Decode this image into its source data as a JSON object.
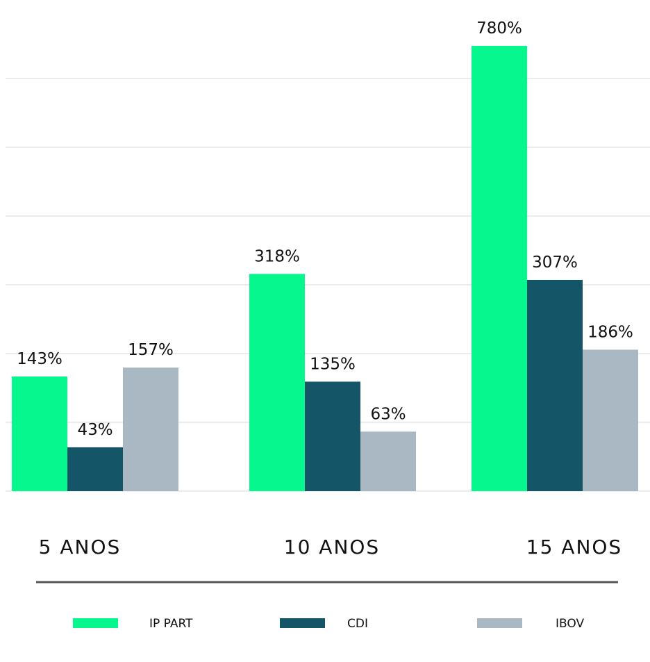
{
  "chart_data": {
    "type": "bar",
    "title": "",
    "xlabel": "",
    "ylabel": "",
    "categories": [
      "5 ANOS",
      "10 ANOS",
      "15 ANOS"
    ],
    "series": [
      {
        "name": "IP PART",
        "color": "#07F78F",
        "values": [
          143,
          318,
          780
        ],
        "labels": [
          "143%",
          "318%",
          "780%"
        ]
      },
      {
        "name": "CDI",
        "color": "#145568",
        "values": [
          43,
          135,
          307
        ],
        "labels": [
          "43%",
          "135%",
          "307%"
        ]
      },
      {
        "name": "IBOV",
        "color": "#A9B8C2",
        "values": [
          157,
          63,
          186
        ],
        "labels": [
          "157%",
          "63%",
          "186%"
        ]
      }
    ],
    "ylim": [
      0,
      780
    ],
    "grid": true,
    "legend_position": "bottom"
  }
}
